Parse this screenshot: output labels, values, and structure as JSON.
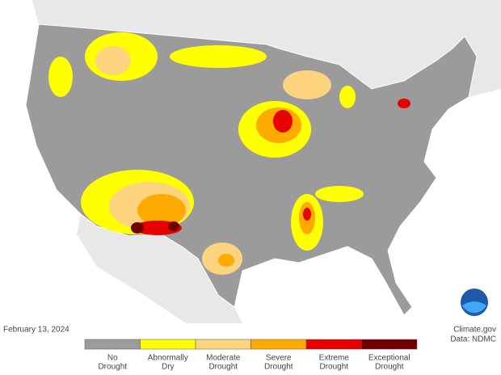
{
  "date": "February 13, 2024",
  "credit": "Climate.gov",
  "source": "Data: NDMC",
  "legend": [
    {
      "lines": [
        "No",
        "Drought"
      ],
      "color": "#9b9b9b"
    },
    {
      "lines": [
        "Abnormally",
        "Dry"
      ],
      "color": "#ffff00"
    },
    {
      "lines": [
        "Moderate",
        "Drought"
      ],
      "color": "#fcd37f"
    },
    {
      "lines": [
        "Severe",
        "Drought"
      ],
      "color": "#ffaa00"
    },
    {
      "lines": [
        "Extreme",
        "Drought"
      ],
      "color": "#e60000"
    },
    {
      "lines": [
        "Exceptional",
        "Drought"
      ],
      "color": "#730000"
    }
  ]
}
